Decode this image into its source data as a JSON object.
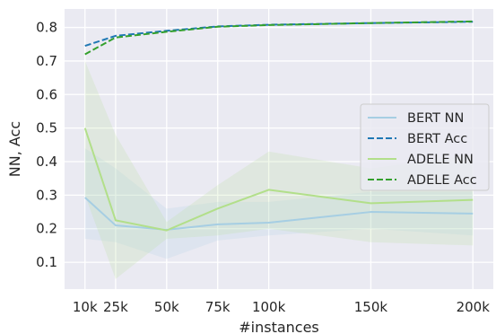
{
  "chart_data": {
    "type": "line",
    "title": "",
    "xlabel": "#instances",
    "ylabel": "NN, Acc",
    "xlim": [
      0,
      210000
    ],
    "ylim": [
      0.02,
      0.855
    ],
    "x_ticks": [
      10000,
      25000,
      50000,
      75000,
      100000,
      150000,
      200000
    ],
    "x_tick_labels": [
      "10k",
      "25k",
      "50k",
      "75k",
      "100k",
      "150k",
      "200k"
    ],
    "y_ticks": [
      0.1,
      0.2,
      0.3,
      0.4,
      0.5,
      0.6,
      0.7,
      0.8
    ],
    "y_tick_labels": [
      "0.1",
      "0.2",
      "0.3",
      "0.4",
      "0.5",
      "0.6",
      "0.7",
      "0.8"
    ],
    "grid": true,
    "legend_position": "right",
    "x": [
      10000,
      25000,
      50000,
      75000,
      100000,
      150000,
      200000
    ],
    "series": [
      {
        "name": "BERT NN",
        "color": "#a6cee3",
        "style": "solid",
        "values": [
          0.293,
          0.21,
          0.197,
          0.213,
          0.218,
          0.25,
          0.245
        ],
        "band_lower": [
          0.17,
          0.16,
          0.11,
          0.165,
          0.18,
          0.2,
          0.18
        ],
        "band_upper": [
          0.44,
          0.38,
          0.26,
          0.28,
          0.28,
          0.31,
          0.31
        ],
        "band_color": "#a6cee3"
      },
      {
        "name": "BERT Acc",
        "color": "#1f78b4",
        "style": "dashed",
        "values": [
          0.745,
          0.775,
          0.79,
          0.803,
          0.808,
          0.813,
          0.817
        ]
      },
      {
        "name": "ADELE NN",
        "color": "#b2df8a",
        "style": "solid",
        "values": [
          0.5,
          0.225,
          0.195,
          0.26,
          0.316,
          0.276,
          0.286
        ],
        "band_lower": [
          0.3,
          0.05,
          0.17,
          0.18,
          0.2,
          0.16,
          0.15
        ],
        "band_upper": [
          0.7,
          0.48,
          0.22,
          0.33,
          0.43,
          0.38,
          0.42
        ],
        "band_color": "#b2df8a"
      },
      {
        "name": "ADELE Acc",
        "color": "#33a02c",
        "style": "dashed",
        "values": [
          0.72,
          0.77,
          0.787,
          0.802,
          0.807,
          0.813,
          0.818
        ]
      }
    ]
  }
}
